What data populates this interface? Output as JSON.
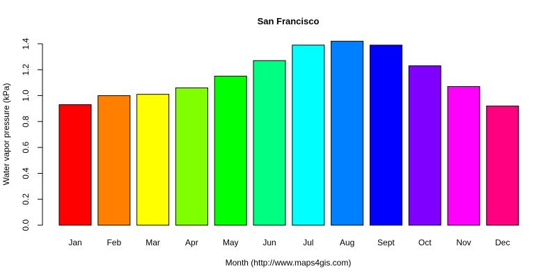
{
  "chart_data": {
    "type": "bar",
    "title": "San Francisco",
    "xlabel": "Month (http://www.maps4gis.com)",
    "ylabel": "Water vapor pressure (kPa)",
    "categories": [
      "Jan",
      "Feb",
      "Mar",
      "Apr",
      "May",
      "Jun",
      "Jul",
      "Aug",
      "Sept",
      "Oct",
      "Nov",
      "Dec"
    ],
    "values": [
      0.93,
      1.0,
      1.01,
      1.06,
      1.15,
      1.27,
      1.39,
      1.42,
      1.39,
      1.23,
      1.07,
      0.92
    ],
    "colors": [
      "#FF0000",
      "#FF8000",
      "#FFFF00",
      "#80FF00",
      "#00FF00",
      "#00FF80",
      "#00FFFF",
      "#0080FF",
      "#0000FF",
      "#8000FF",
      "#FF00FF",
      "#FF0080"
    ],
    "ylim": [
      0,
      1.4
    ],
    "yticks": [
      "0.0",
      "0.2",
      "0.4",
      "0.6",
      "0.8",
      "1.0",
      "1.2",
      "1.4"
    ],
    "grid": false,
    "legend": "none"
  }
}
